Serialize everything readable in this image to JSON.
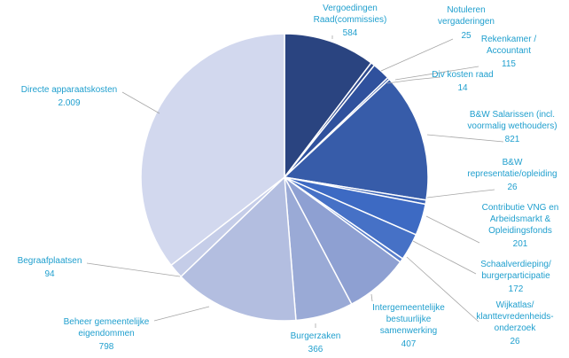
{
  "chart_data": {
    "type": "pie",
    "slices": [
      {
        "label": "Vergoedingen Raad(commissies)",
        "value_text": "584",
        "value": 584,
        "color": "#2a4480"
      },
      {
        "label": "Notuleren vergaderingen",
        "value_text": "25",
        "value": 25,
        "color": "#2e4a8e"
      },
      {
        "label": "Rekenkamer / Accountant",
        "value_text": "115",
        "value": 115,
        "color": "#2f519d"
      },
      {
        "label": "Div kosten raad",
        "value_text": "14",
        "value": 14,
        "color": "#3457a6"
      },
      {
        "label": "B&W Salarissen (incl. voormalig wethouders)",
        "value_text": "821",
        "value": 821,
        "color": "#375ca9"
      },
      {
        "label": "B&W representatie/opleiding",
        "value_text": "26",
        "value": 26,
        "color": "#3a63b6"
      },
      {
        "label": "Contributie VNG en Arbeidsmarkt & Opleidingsfonds",
        "value_text": "201",
        "value": 201,
        "color": "#3d6ac3"
      },
      {
        "label": "Schaalverdieping/ burgerparticipatie",
        "value_text": "172",
        "value": 172,
        "color": "#4671c6"
      },
      {
        "label": "Wijkatlas/ klanttevredenheids-onderzoek",
        "value_text": "26",
        "value": 26,
        "color": "#5a7fcb"
      },
      {
        "label": "Intergemeentelijke bestuurlijke samenwerking",
        "value_text": "407",
        "value": 407,
        "color": "#8ea0d2"
      },
      {
        "label": "Burgerzaken",
        "value_text": "366",
        "value": 366,
        "color": "#9aaad6"
      },
      {
        "label": "Beheer gemeentelijke eigendommen",
        "value_text": "798",
        "value": 798,
        "color": "#b3bee0"
      },
      {
        "label": "Begraafplaatsen",
        "value_text": "94",
        "value": 94,
        "color": "#c5cde8"
      },
      {
        "label": "Directe apparaatskosten",
        "value_text": "2.009",
        "value": 2009,
        "color": "#d2d8ee"
      }
    ]
  }
}
